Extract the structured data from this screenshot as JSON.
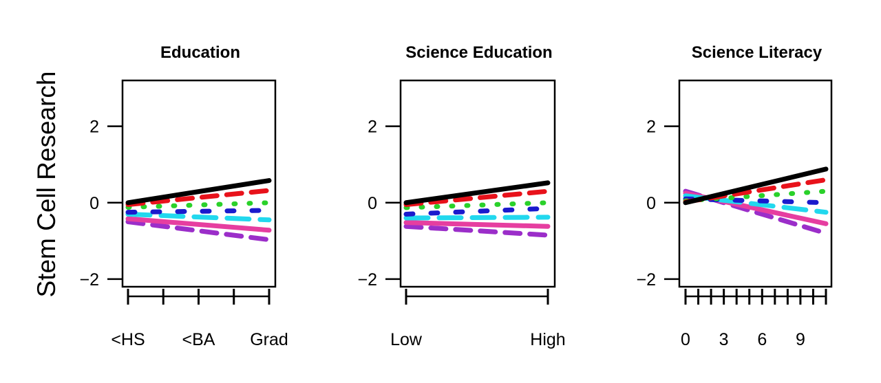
{
  "ylabel": "Stem Cell Research",
  "series_styles": [
    {
      "color": "#000000",
      "dash": "solid"
    },
    {
      "color": "#e8121b",
      "dash": "dash"
    },
    {
      "color": "#2ad12a",
      "dash": "dot"
    },
    {
      "color": "#1a1acd",
      "dash": "dashdot"
    },
    {
      "color": "#22d8ee",
      "dash": "longdash"
    },
    {
      "color": "#e63ea0",
      "dash": "solid"
    },
    {
      "color": "#9b2ec9",
      "dash": "dash"
    }
  ],
  "chart_data": [
    {
      "type": "line",
      "title": "Education",
      "xlabel": "",
      "ylabel": "Stem Cell Research",
      "x": [
        0,
        4
      ],
      "xlim": [
        0,
        4
      ],
      "ylim": [
        -2.2,
        3.2
      ],
      "x_ticks": [
        0,
        1,
        2,
        3,
        4
      ],
      "x_tick_labels": [
        {
          "x": 0,
          "label": "<HS"
        },
        {
          "x": 2,
          "label": "<BA"
        },
        {
          "x": 4,
          "label": "Grad"
        }
      ],
      "y_ticks": [
        -2,
        0,
        2
      ],
      "y_tick_labels": [
        "−2",
        "0",
        "2"
      ],
      "series": [
        {
          "values": [
            0.0,
            0.58
          ]
        },
        {
          "values": [
            -0.05,
            0.32
          ]
        },
        {
          "values": [
            -0.12,
            0.0
          ]
        },
        {
          "values": [
            -0.25,
            -0.2
          ]
        },
        {
          "values": [
            -0.3,
            -0.45
          ]
        },
        {
          "values": [
            -0.42,
            -0.72
          ]
        },
        {
          "values": [
            -0.5,
            -0.97
          ]
        }
      ]
    },
    {
      "type": "line",
      "title": "Science Education",
      "xlabel": "",
      "ylabel": "",
      "x": [
        0,
        1
      ],
      "xlim": [
        0,
        1
      ],
      "ylim": [
        -2.2,
        3.2
      ],
      "x_ticks": [
        0,
        1
      ],
      "x_tick_labels": [
        {
          "x": 0,
          "label": "Low"
        },
        {
          "x": 1,
          "label": "High"
        }
      ],
      "y_ticks": [
        -2,
        0,
        2
      ],
      "y_tick_labels": [
        "−2",
        "0",
        "2"
      ],
      "series": [
        {
          "values": [
            0.0,
            0.52
          ]
        },
        {
          "values": [
            -0.05,
            0.3
          ]
        },
        {
          "values": [
            -0.13,
            0.0
          ]
        },
        {
          "values": [
            -0.3,
            -0.15
          ]
        },
        {
          "values": [
            -0.4,
            -0.38
          ]
        },
        {
          "values": [
            -0.52,
            -0.62
          ]
        },
        {
          "values": [
            -0.62,
            -0.85
          ]
        }
      ]
    },
    {
      "type": "line",
      "title": "Science Literacy",
      "xlabel": "",
      "ylabel": "",
      "x": [
        0,
        11
      ],
      "xlim": [
        0,
        11
      ],
      "ylim": [
        -2.2,
        3.2
      ],
      "x_ticks": [
        0,
        1,
        2,
        3,
        4,
        5,
        6,
        7,
        8,
        9,
        10,
        11
      ],
      "x_tick_labels": [
        {
          "x": 0,
          "label": "0"
        },
        {
          "x": 3,
          "label": "3"
        },
        {
          "x": 6,
          "label": "6"
        },
        {
          "x": 9,
          "label": "9"
        }
      ],
      "y_ticks": [
        -2,
        0,
        2
      ],
      "y_tick_labels": [
        "−2",
        "0",
        "2"
      ],
      "series": [
        {
          "values": [
            0.0,
            0.88
          ]
        },
        {
          "values": [
            0.02,
            0.6
          ]
        },
        {
          "values": [
            0.05,
            0.3
          ]
        },
        {
          "values": [
            0.1,
            0.0
          ]
        },
        {
          "values": [
            0.18,
            -0.25
          ]
        },
        {
          "values": [
            0.25,
            -0.55
          ]
        },
        {
          "values": [
            0.3,
            -0.8
          ]
        }
      ]
    }
  ]
}
